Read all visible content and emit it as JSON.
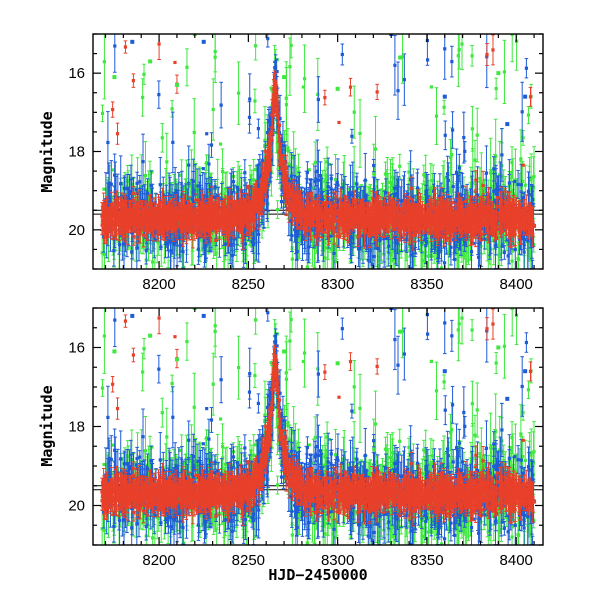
{
  "chart_data": [
    {
      "type": "scatter",
      "ylabel": "Magnitude",
      "xlim": [
        8163,
        8415
      ],
      "ylim": [
        21.0,
        15.0
      ],
      "y_inverted": true,
      "x_ticks": [
        "8200",
        "8250",
        "8300",
        "8350",
        "8400"
      ],
      "y_ticks": [
        "16",
        "18",
        "20"
      ],
      "reference_lines_y": [
        19.5,
        19.6
      ],
      "peak": {
        "x": 8265,
        "y": 16.3
      },
      "baseline": {
        "x_range": [
          8168,
          8410
        ],
        "y": 19.7
      },
      "series": [
        {
          "color": "#e8402a",
          "description_points": [
            {
              "x": 8170,
              "y": 19.7
            },
            {
              "x": 8200,
              "y": 19.6
            },
            {
              "x": 8230,
              "y": 19.4
            },
            {
              "x": 8250,
              "y": 18.9
            },
            {
              "x": 8260,
              "y": 18.0
            },
            {
              "x": 8265,
              "y": 16.3
            },
            {
              "x": 8270,
              "y": 18.4
            },
            {
              "x": 8285,
              "y": 19.1
            },
            {
              "x": 8310,
              "y": 19.5
            },
            {
              "x": 8350,
              "y": 19.7
            },
            {
              "x": 8400,
              "y": 19.8
            },
            {
              "x": 8410,
              "y": 19.9
            }
          ]
        },
        {
          "color": "#1e5bd7",
          "description_points": [
            {
              "x": 8185,
              "y": 15.2
            },
            {
              "x": 8225,
              "y": 15.2
            },
            {
              "x": 8330,
              "y": 15.0
            },
            {
              "x": 8360,
              "y": 16.6
            },
            {
              "x": 8395,
              "y": 17.3
            },
            {
              "x": 8405,
              "y": 16.6
            }
          ]
        },
        {
          "color": "#3ee83e",
          "description_points": [
            {
              "x": 8175,
              "y": 16.1
            },
            {
              "x": 8195,
              "y": 15.7
            },
            {
              "x": 8210,
              "y": 16.3
            },
            {
              "x": 8220,
              "y": 15.0
            },
            {
              "x": 8270,
              "y": 16.1
            },
            {
              "x": 8300,
              "y": 16.4
            },
            {
              "x": 8335,
              "y": 15.6
            },
            {
              "x": 8390,
              "y": 16.0
            }
          ]
        }
      ]
    },
    {
      "type": "scatter",
      "ylabel": "Magnitude",
      "xlabel": "HJD−2450000",
      "xlim": [
        8163,
        8415
      ],
      "ylim": [
        21.0,
        15.0
      ],
      "y_inverted": true,
      "x_ticks": [
        "8200",
        "8250",
        "8300",
        "8350",
        "8400"
      ],
      "y_ticks": [
        "16",
        "18",
        "20"
      ],
      "reference_lines_y": [
        19.5,
        19.6
      ],
      "peak": {
        "x": 8265,
        "y": 16.3
      },
      "baseline": {
        "x_range": [
          8168,
          8410
        ],
        "y": 19.7
      },
      "series": [
        {
          "color": "#e8402a",
          "description_points": [
            {
              "x": 8170,
              "y": 19.7
            },
            {
              "x": 8200,
              "y": 19.6
            },
            {
              "x": 8230,
              "y": 19.4
            },
            {
              "x": 8250,
              "y": 18.9
            },
            {
              "x": 8260,
              "y": 18.0
            },
            {
              "x": 8265,
              "y": 16.3
            },
            {
              "x": 8270,
              "y": 18.4
            },
            {
              "x": 8285,
              "y": 19.1
            },
            {
              "x": 8310,
              "y": 19.5
            },
            {
              "x": 8350,
              "y": 19.7
            },
            {
              "x": 8400,
              "y": 19.8
            },
            {
              "x": 8410,
              "y": 19.9
            }
          ]
        },
        {
          "color": "#1e5bd7",
          "description_points": [
            {
              "x": 8185,
              "y": 15.2
            },
            {
              "x": 8225,
              "y": 15.2
            },
            {
              "x": 8330,
              "y": 15.0
            },
            {
              "x": 8360,
              "y": 16.6
            },
            {
              "x": 8395,
              "y": 17.3
            },
            {
              "x": 8405,
              "y": 16.6
            }
          ]
        },
        {
          "color": "#3ee83e",
          "description_points": [
            {
              "x": 8175,
              "y": 16.1
            },
            {
              "x": 8195,
              "y": 15.7
            },
            {
              "x": 8210,
              "y": 16.3
            },
            {
              "x": 8220,
              "y": 15.0
            },
            {
              "x": 8270,
              "y": 16.1
            },
            {
              "x": 8300,
              "y": 16.4
            },
            {
              "x": 8335,
              "y": 15.6
            },
            {
              "x": 8390,
              "y": 16.0
            }
          ]
        }
      ]
    }
  ]
}
